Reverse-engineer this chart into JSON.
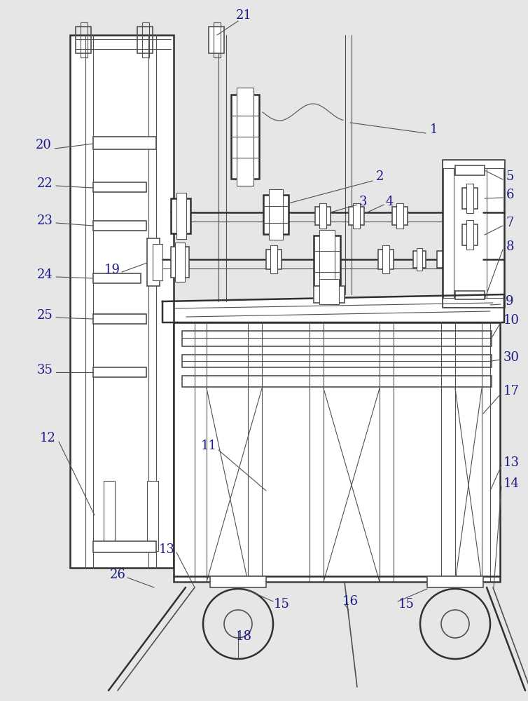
{
  "bg_color": "#e6e6e6",
  "line_color": "#505050",
  "label_color": "#1a1a8c",
  "fig_width": 7.54,
  "fig_height": 10.0
}
